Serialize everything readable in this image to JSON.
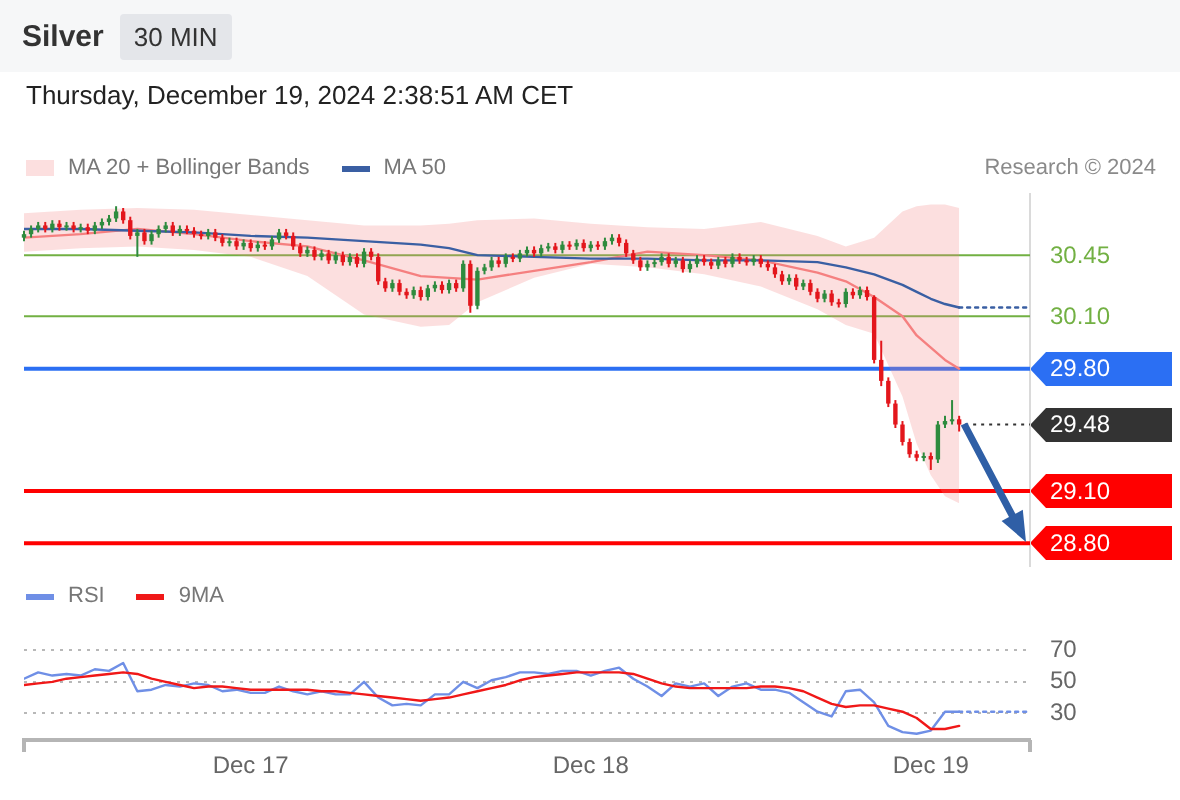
{
  "chart_data": [
    {
      "type": "candlestick",
      "title": "Silver",
      "subtitle": "Thursday, December 19, 2024 2:38:51 AM CET",
      "annotations": [
        "30 MIN",
        "Research © 2024"
      ],
      "x": [
        "2024-12-16T08:00",
        "2024-12-16T08:30",
        "2024-12-16T09:00",
        "2024-12-16T09:30",
        "2024-12-16T10:00",
        "2024-12-16T10:30",
        "2024-12-16T11:00",
        "2024-12-16T11:30",
        "2024-12-16T12:00",
        "2024-12-16T12:30",
        "2024-12-16T13:00",
        "2024-12-16T13:30",
        "2024-12-16T14:00",
        "2024-12-16T14:30",
        "2024-12-16T15:00",
        "2024-12-16T15:30",
        "2024-12-16T16:00",
        "2024-12-16T16:30",
        "2024-12-16T17:00",
        "2024-12-16T17:30",
        "2024-12-16T18:00",
        "2024-12-16T18:30",
        "2024-12-16T19:00",
        "2024-12-16T19:30",
        "2024-12-16T20:00",
        "2024-12-16T20:30",
        "2024-12-16T21:00",
        "2024-12-16T21:30",
        "2024-12-16T22:00",
        "2024-12-16T22:30",
        "2024-12-16T23:00",
        "2024-12-16T23:30",
        "2024-12-17T00:00",
        "2024-12-17T00:30",
        "2024-12-17T01:00",
        "2024-12-17T01:30",
        "2024-12-17T02:00",
        "2024-12-17T02:30",
        "2024-12-17T03:00",
        "2024-12-17T03:30",
        "2024-12-17T04:00",
        "2024-12-17T04:30",
        "2024-12-17T05:00",
        "2024-12-17T05:30",
        "2024-12-17T06:00",
        "2024-12-17T06:30",
        "2024-12-17T07:00",
        "2024-12-17T07:30",
        "2024-12-17T08:00",
        "2024-12-17T08:30",
        "2024-12-17T09:00",
        "2024-12-17T09:30",
        "2024-12-17T10:00",
        "2024-12-17T10:30",
        "2024-12-17T11:00",
        "2024-12-17T11:30",
        "2024-12-17T12:00",
        "2024-12-17T12:30",
        "2024-12-17T13:00",
        "2024-12-17T13:30",
        "2024-12-17T14:00",
        "2024-12-17T14:30",
        "2024-12-17T15:00",
        "2024-12-17T15:30",
        "2024-12-17T16:00",
        "2024-12-17T16:30",
        "2024-12-17T17:00",
        "2024-12-17T17:30",
        "2024-12-17T18:00",
        "2024-12-17T18:30",
        "2024-12-17T19:00",
        "2024-12-17T19:30",
        "2024-12-17T20:00",
        "2024-12-17T20:30",
        "2024-12-17T21:00",
        "2024-12-17T21:30",
        "2024-12-17T22:00",
        "2024-12-17T22:30",
        "2024-12-17T23:00",
        "2024-12-17T23:30",
        "2024-12-18T00:00",
        "2024-12-18T00:30",
        "2024-12-18T01:00",
        "2024-12-18T01:30",
        "2024-12-18T02:00",
        "2024-12-18T02:30",
        "2024-12-18T03:00",
        "2024-12-18T03:30",
        "2024-12-18T04:00",
        "2024-12-18T04:30",
        "2024-12-18T05:00",
        "2024-12-18T05:30",
        "2024-12-18T06:00",
        "2024-12-18T06:30",
        "2024-12-18T07:00",
        "2024-12-18T07:30",
        "2024-12-18T08:00",
        "2024-12-18T08:30",
        "2024-12-18T09:00",
        "2024-12-18T09:30",
        "2024-12-18T10:00",
        "2024-12-18T10:30",
        "2024-12-18T11:00",
        "2024-12-18T11:30",
        "2024-12-18T12:00",
        "2024-12-18T12:30",
        "2024-12-18T13:00",
        "2024-12-18T13:30",
        "2024-12-18T14:00",
        "2024-12-18T14:30",
        "2024-12-18T15:00",
        "2024-12-18T15:30",
        "2024-12-18T16:00",
        "2024-12-18T16:30",
        "2024-12-18T17:00",
        "2024-12-18T17:30",
        "2024-12-18T18:00",
        "2024-12-18T18:30",
        "2024-12-18T19:00",
        "2024-12-18T19:30",
        "2024-12-18T20:00",
        "2024-12-18T20:30",
        "2024-12-18T21:00",
        "2024-12-18T21:30",
        "2024-12-18T22:00",
        "2024-12-18T22:30",
        "2024-12-18T23:00",
        "2024-12-18T23:30",
        "2024-12-19T00:00",
        "2024-12-19T00:30",
        "2024-12-19T01:00",
        "2024-12-19T01:30",
        "2024-12-19T02:00"
      ],
      "ohlc": [
        [
          30.55,
          30.59,
          30.53,
          30.57
        ],
        [
          30.57,
          30.62,
          30.55,
          30.6
        ],
        [
          30.6,
          30.64,
          30.58,
          30.62
        ],
        [
          30.62,
          30.64,
          30.58,
          30.6
        ],
        [
          30.6,
          30.65,
          30.58,
          30.63
        ],
        [
          30.63,
          30.65,
          30.59,
          30.61
        ],
        [
          30.61,
          30.64,
          30.59,
          30.62
        ],
        [
          30.62,
          30.64,
          30.58,
          30.6
        ],
        [
          30.6,
          30.63,
          30.58,
          30.61
        ],
        [
          30.61,
          30.63,
          30.57,
          30.59
        ],
        [
          30.59,
          30.64,
          30.57,
          30.62
        ],
        [
          30.62,
          30.66,
          30.6,
          30.64
        ],
        [
          30.64,
          30.68,
          30.62,
          30.66
        ],
        [
          30.66,
          30.73,
          30.64,
          30.7
        ],
        [
          30.7,
          30.72,
          30.63,
          30.65
        ],
        [
          30.65,
          30.67,
          30.54,
          30.56
        ],
        [
          30.56,
          30.6,
          30.44,
          30.58
        ],
        [
          30.58,
          30.6,
          30.51,
          30.53
        ],
        [
          30.53,
          30.59,
          30.51,
          30.57
        ],
        [
          30.57,
          30.62,
          30.55,
          30.6
        ],
        [
          30.6,
          30.64,
          30.58,
          30.62
        ],
        [
          30.62,
          30.64,
          30.56,
          30.58
        ],
        [
          30.58,
          30.62,
          30.56,
          30.6
        ],
        [
          30.6,
          30.62,
          30.57,
          30.59
        ],
        [
          30.59,
          30.61,
          30.55,
          30.57
        ],
        [
          30.57,
          30.59,
          30.54,
          30.56
        ],
        [
          30.56,
          30.6,
          30.54,
          30.58
        ],
        [
          30.58,
          30.6,
          30.53,
          30.55
        ],
        [
          30.55,
          30.57,
          30.5,
          30.52
        ],
        [
          30.52,
          30.55,
          30.5,
          30.53
        ],
        [
          30.53,
          30.55,
          30.48,
          30.5
        ],
        [
          30.5,
          30.54,
          30.48,
          30.52
        ],
        [
          30.52,
          30.54,
          30.47,
          30.49
        ],
        [
          30.49,
          30.53,
          30.47,
          30.51
        ],
        [
          30.51,
          30.53,
          30.48,
          30.5
        ],
        [
          30.5,
          30.56,
          30.48,
          30.54
        ],
        [
          30.54,
          30.6,
          30.52,
          30.58
        ],
        [
          30.58,
          30.6,
          30.54,
          30.56
        ],
        [
          30.56,
          30.58,
          30.48,
          30.5
        ],
        [
          30.5,
          30.52,
          30.44,
          30.46
        ],
        [
          30.46,
          30.5,
          30.44,
          30.48
        ],
        [
          30.48,
          30.5,
          30.42,
          30.44
        ],
        [
          30.44,
          30.48,
          30.42,
          30.46
        ],
        [
          30.46,
          30.48,
          30.4,
          30.42
        ],
        [
          30.42,
          30.47,
          30.4,
          30.45
        ],
        [
          30.45,
          30.47,
          30.39,
          30.41
        ],
        [
          30.41,
          30.46,
          30.39,
          30.44
        ],
        [
          30.44,
          30.46,
          30.38,
          30.4
        ],
        [
          30.4,
          30.49,
          30.38,
          30.47
        ],
        [
          30.47,
          30.49,
          30.42,
          30.44
        ],
        [
          30.44,
          30.46,
          30.28,
          30.3
        ],
        [
          30.3,
          30.32,
          30.24,
          30.26
        ],
        [
          30.26,
          30.31,
          30.24,
          30.29
        ],
        [
          30.29,
          30.31,
          30.22,
          30.24
        ],
        [
          30.24,
          30.26,
          30.2,
          30.22
        ],
        [
          30.22,
          30.27,
          30.2,
          30.25
        ],
        [
          30.25,
          30.27,
          30.19,
          30.21
        ],
        [
          30.21,
          30.28,
          30.19,
          30.26
        ],
        [
          30.26,
          30.3,
          30.24,
          30.28
        ],
        [
          30.28,
          30.3,
          30.23,
          30.25
        ],
        [
          30.25,
          30.31,
          30.23,
          30.29
        ],
        [
          30.29,
          30.31,
          30.24,
          30.26
        ],
        [
          30.26,
          30.42,
          30.24,
          30.4
        ],
        [
          30.4,
          30.42,
          30.12,
          30.16
        ],
        [
          30.16,
          30.38,
          30.14,
          30.36
        ],
        [
          30.36,
          30.4,
          30.34,
          30.38
        ],
        [
          30.38,
          30.44,
          30.36,
          30.42
        ],
        [
          30.42,
          30.44,
          30.38,
          30.4
        ],
        [
          30.4,
          30.46,
          30.38,
          30.44
        ],
        [
          30.44,
          30.46,
          30.41,
          30.43
        ],
        [
          30.43,
          30.48,
          30.41,
          30.46
        ],
        [
          30.46,
          30.5,
          30.44,
          30.48
        ],
        [
          30.48,
          30.5,
          30.44,
          30.46
        ],
        [
          30.46,
          30.51,
          30.44,
          30.49
        ],
        [
          30.49,
          30.52,
          30.47,
          30.5
        ],
        [
          30.5,
          30.52,
          30.46,
          30.48
        ],
        [
          30.48,
          30.53,
          30.46,
          30.51
        ],
        [
          30.51,
          30.53,
          30.48,
          30.5
        ],
        [
          30.5,
          30.54,
          30.48,
          30.52
        ],
        [
          30.52,
          30.54,
          30.47,
          30.49
        ],
        [
          30.49,
          30.53,
          30.47,
          30.51
        ],
        [
          30.51,
          30.53,
          30.48,
          30.5
        ],
        [
          30.5,
          30.55,
          30.48,
          30.53
        ],
        [
          30.53,
          30.57,
          30.51,
          30.55
        ],
        [
          30.55,
          30.57,
          30.5,
          30.52
        ],
        [
          30.52,
          30.54,
          30.44,
          30.46
        ],
        [
          30.46,
          30.48,
          30.4,
          30.42
        ],
        [
          30.42,
          30.44,
          30.36,
          30.38
        ],
        [
          30.38,
          30.42,
          30.36,
          30.4
        ],
        [
          30.4,
          30.43,
          30.38,
          30.41
        ],
        [
          30.41,
          30.46,
          30.39,
          30.44
        ],
        [
          30.44,
          30.46,
          30.38,
          30.4
        ],
        [
          30.4,
          30.44,
          30.38,
          30.42
        ],
        [
          30.42,
          30.44,
          30.35,
          30.37
        ],
        [
          30.37,
          30.42,
          30.35,
          30.4
        ],
        [
          30.4,
          30.45,
          30.38,
          30.43
        ],
        [
          30.43,
          30.45,
          30.39,
          30.41
        ],
        [
          30.41,
          30.43,
          30.37,
          30.39
        ],
        [
          30.39,
          30.44,
          30.37,
          30.42
        ],
        [
          30.42,
          30.44,
          30.38,
          30.4
        ],
        [
          30.4,
          30.46,
          30.38,
          30.44
        ],
        [
          30.44,
          30.46,
          30.4,
          30.42
        ],
        [
          30.42,
          30.44,
          30.39,
          30.41
        ],
        [
          30.41,
          30.45,
          30.39,
          30.43
        ],
        [
          30.43,
          30.45,
          30.38,
          30.4
        ],
        [
          30.4,
          30.42,
          30.36,
          30.38
        ],
        [
          30.38,
          30.4,
          30.32,
          30.34
        ],
        [
          30.34,
          30.36,
          30.28,
          30.3
        ],
        [
          30.3,
          30.34,
          30.28,
          30.32
        ],
        [
          30.32,
          30.34,
          30.25,
          30.27
        ],
        [
          30.27,
          30.31,
          30.25,
          30.29
        ],
        [
          30.29,
          30.31,
          30.22,
          30.24
        ],
        [
          30.24,
          30.26,
          30.18,
          30.2
        ],
        [
          30.2,
          30.25,
          30.18,
          30.23
        ],
        [
          30.23,
          30.25,
          30.16,
          30.18
        ],
        [
          30.18,
          30.2,
          30.15,
          30.17
        ],
        [
          30.17,
          30.26,
          30.15,
          30.24
        ],
        [
          30.24,
          30.26,
          30.2,
          30.22
        ],
        [
          30.22,
          30.27,
          30.2,
          30.25
        ],
        [
          30.25,
          30.27,
          30.19,
          30.21
        ],
        [
          30.21,
          30.22,
          29.83,
          29.85
        ],
        [
          29.85,
          29.96,
          29.7,
          29.73
        ],
        [
          29.73,
          29.75,
          29.58,
          29.6
        ],
        [
          29.6,
          29.62,
          29.46,
          29.48
        ],
        [
          29.48,
          29.5,
          29.36,
          29.38
        ],
        [
          29.38,
          29.4,
          29.29,
          29.31
        ],
        [
          29.31,
          29.33,
          29.27,
          29.29
        ],
        [
          29.29,
          29.32,
          29.27,
          29.3
        ],
        [
          29.3,
          29.32,
          29.22,
          29.28
        ],
        [
          29.28,
          29.5,
          29.26,
          29.48
        ],
        [
          29.48,
          29.53,
          29.46,
          29.5
        ],
        [
          29.5,
          29.62,
          29.48,
          29.51
        ],
        [
          29.51,
          29.53,
          29.44,
          29.48
        ]
      ],
      "colors": [
        "#2e8b3e",
        "#2e8b3e",
        "#2e8b3e",
        "#e3161c",
        "#2e8b3e",
        "#e3161c",
        "#2e8b3e",
        "#e3161c",
        "#2e8b3e",
        "#e3161c",
        "#2e8b3e",
        "#2e8b3e",
        "#2e8b3e",
        "#2e8b3e",
        "#e3161c",
        "#e3161c",
        "#2e8b3e",
        "#e3161c",
        "#2e8b3e",
        "#2e8b3e",
        "#2e8b3e",
        "#e3161c",
        "#2e8b3e",
        "#e3161c",
        "#e3161c",
        "#e3161c",
        "#2e8b3e",
        "#e3161c",
        "#e3161c",
        "#2e8b3e",
        "#e3161c",
        "#2e8b3e",
        "#e3161c",
        "#2e8b3e",
        "#e3161c",
        "#2e8b3e",
        "#2e8b3e",
        "#e3161c",
        "#e3161c",
        "#e3161c",
        "#2e8b3e",
        "#e3161c",
        "#2e8b3e",
        "#e3161c",
        "#2e8b3e",
        "#e3161c",
        "#2e8b3e",
        "#e3161c",
        "#2e8b3e",
        "#e3161c",
        "#e3161c",
        "#e3161c",
        "#2e8b3e",
        "#e3161c",
        "#e3161c",
        "#2e8b3e",
        "#e3161c",
        "#2e8b3e",
        "#2e8b3e",
        "#e3161c",
        "#2e8b3e",
        "#e3161c",
        "#2e8b3e",
        "#e3161c",
        "#2e8b3e",
        "#2e8b3e",
        "#2e8b3e",
        "#e3161c",
        "#2e8b3e",
        "#e3161c",
        "#2e8b3e",
        "#2e8b3e",
        "#e3161c",
        "#2e8b3e",
        "#2e8b3e",
        "#e3161c",
        "#2e8b3e",
        "#e3161c",
        "#2e8b3e",
        "#e3161c",
        "#2e8b3e",
        "#e3161c",
        "#2e8b3e",
        "#2e8b3e",
        "#e3161c",
        "#e3161c",
        "#e3161c",
        "#e3161c",
        "#2e8b3e",
        "#2e8b3e",
        "#2e8b3e",
        "#e3161c",
        "#2e8b3e",
        "#e3161c",
        "#2e8b3e",
        "#2e8b3e",
        "#e3161c",
        "#e3161c",
        "#2e8b3e",
        "#e3161c",
        "#2e8b3e",
        "#e3161c",
        "#e3161c",
        "#2e8b3e",
        "#e3161c",
        "#e3161c",
        "#e3161c",
        "#e3161c",
        "#2e8b3e",
        "#e3161c",
        "#2e8b3e",
        "#e3161c",
        "#e3161c",
        "#2e8b3e",
        "#e3161c",
        "#e3161c",
        "#2e8b3e",
        "#e3161c",
        "#2e8b3e",
        "#e3161c",
        "#e3161c",
        "#e3161c",
        "#e3161c",
        "#e3161c",
        "#e3161c",
        "#e3161c",
        "#e3161c",
        "#2e8b3e",
        "#e3161c",
        "#2e8b3e",
        "#2e8b3e",
        "#2e8b3e",
        "#e3161c"
      ],
      "series": [
        {
          "type": "line",
          "name": "MA 20 + Bollinger Bands",
          "color": "#f58080",
          "x": [
            "2024-12-16T08:00",
            "2024-12-16T12:00",
            "2024-12-16T16:00",
            "2024-12-16T20:00",
            "2024-12-17T00:00",
            "2024-12-17T04:00",
            "2024-12-17T08:00",
            "2024-12-17T12:00",
            "2024-12-17T14:00",
            "2024-12-17T16:00",
            "2024-12-17T20:00",
            "2024-12-18T00:00",
            "2024-12-18T04:00",
            "2024-12-18T08:00",
            "2024-12-18T12:00",
            "2024-12-18T16:00",
            "2024-12-18T18:00",
            "2024-12-18T20:00",
            "2024-12-18T22:00",
            "2024-12-18T23:00",
            "2024-12-19T00:00",
            "2024-12-19T01:00",
            "2024-12-19T02:00"
          ],
          "values": [
            30.55,
            30.57,
            30.6,
            30.57,
            30.53,
            30.5,
            30.42,
            30.33,
            30.32,
            30.31,
            30.36,
            30.41,
            30.47,
            30.45,
            30.42,
            30.35,
            30.3,
            30.21,
            30.1,
            29.99,
            29.92,
            29.85,
            29.8
          ],
          "upper": [
            30.69,
            30.71,
            30.72,
            30.71,
            30.68,
            30.65,
            30.62,
            30.62,
            30.63,
            30.65,
            30.66,
            30.63,
            30.61,
            30.6,
            30.64,
            30.56,
            30.5,
            30.55,
            30.7,
            30.73,
            30.74,
            30.74,
            30.72
          ],
          "lower": [
            30.47,
            30.49,
            30.5,
            30.48,
            30.44,
            30.33,
            30.11,
            30.04,
            30.05,
            30.18,
            30.32,
            30.4,
            30.38,
            30.34,
            30.27,
            30.14,
            30.05,
            30.0,
            29.64,
            29.37,
            29.19,
            29.07,
            29.03
          ]
        },
        {
          "type": "line",
          "name": "MA 50",
          "color": "#3a5fa3",
          "x": [
            "2024-12-16T08:00",
            "2024-12-16T12:00",
            "2024-12-16T16:00",
            "2024-12-16T20:00",
            "2024-12-17T00:00",
            "2024-12-17T04:00",
            "2024-12-17T08:00",
            "2024-12-17T12:00",
            "2024-12-17T14:00",
            "2024-12-17T16:00",
            "2024-12-17T20:00",
            "2024-12-18T00:00",
            "2024-12-18T04:00",
            "2024-12-18T08:00",
            "2024-12-18T12:00",
            "2024-12-18T16:00",
            "2024-12-18T18:00",
            "2024-12-18T20:00",
            "2024-12-18T22:00",
            "2024-12-18T23:00",
            "2024-12-19T00:00",
            "2024-12-19T01:00",
            "2024-12-19T02:00"
          ],
          "values": [
            30.6,
            30.6,
            30.59,
            30.58,
            30.56,
            30.55,
            30.53,
            30.51,
            30.49,
            30.45,
            30.44,
            30.43,
            30.43,
            30.42,
            30.42,
            30.41,
            30.38,
            30.34,
            30.28,
            30.24,
            30.2,
            30.17,
            30.15
          ]
        },
        {
          "type": "line",
          "color": "#3a5fa3",
          "line_style": "dotted",
          "x": [
            "2024-12-19T02:00",
            "2024-12-19T07:00"
          ],
          "values": [
            30.15,
            30.15
          ]
        }
      ],
      "xlim": [
        "2024-12-16T08:00",
        "2024-12-19T07:00"
      ],
      "ylim": [
        28.67,
        30.8
      ],
      "ref_lines": [
        {
          "axis": "y",
          "value": 30.45,
          "label": "30.45",
          "color": "#72b043"
        },
        {
          "axis": "y",
          "value": 30.1,
          "label": "30.10",
          "color": "#72b043"
        },
        {
          "axis": "y",
          "value": 29.8,
          "label": "29.80",
          "color": "#2b6ff3"
        },
        {
          "axis": "y",
          "value": 29.48,
          "label": "29.48",
          "color": "#333333",
          "line_style": "dotted"
        },
        {
          "axis": "y",
          "value": 29.1,
          "label": "29.10",
          "color": "#ff0000"
        },
        {
          "axis": "y",
          "value": 28.8,
          "label": "28.80",
          "color": "#ff0000"
        }
      ],
      "legend": "top left",
      "marker": "none",
      "tick_labels": false
    },
    {
      "type": "line",
      "x": [
        "2024-12-16T08:00",
        "2024-12-16T09:00",
        "2024-12-16T10:00",
        "2024-12-16T11:00",
        "2024-12-16T12:00",
        "2024-12-16T13:00",
        "2024-12-16T14:00",
        "2024-12-16T15:00",
        "2024-12-16T16:00",
        "2024-12-16T17:00",
        "2024-12-16T18:00",
        "2024-12-16T19:00",
        "2024-12-16T20:00",
        "2024-12-16T21:00",
        "2024-12-16T22:00",
        "2024-12-16T23:00",
        "2024-12-17T00:00",
        "2024-12-17T01:00",
        "2024-12-17T02:00",
        "2024-12-17T03:00",
        "2024-12-17T04:00",
        "2024-12-17T05:00",
        "2024-12-17T06:00",
        "2024-12-17T07:00",
        "2024-12-17T08:00",
        "2024-12-17T09:00",
        "2024-12-17T10:00",
        "2024-12-17T11:00",
        "2024-12-17T12:00",
        "2024-12-17T13:00",
        "2024-12-17T14:00",
        "2024-12-17T15:00",
        "2024-12-17T16:00",
        "2024-12-17T17:00",
        "2024-12-17T18:00",
        "2024-12-17T19:00",
        "2024-12-17T20:00",
        "2024-12-17T21:00",
        "2024-12-17T22:00",
        "2024-12-17T23:00",
        "2024-12-18T00:00",
        "2024-12-18T01:00",
        "2024-12-18T02:00",
        "2024-12-18T03:00",
        "2024-12-18T04:00",
        "2024-12-18T05:00",
        "2024-12-18T06:00",
        "2024-12-18T07:00",
        "2024-12-18T08:00",
        "2024-12-18T09:00",
        "2024-12-18T10:00",
        "2024-12-18T11:00",
        "2024-12-18T12:00",
        "2024-12-18T13:00",
        "2024-12-18T14:00",
        "2024-12-18T15:00",
        "2024-12-18T16:00",
        "2024-12-18T17:00",
        "2024-12-18T18:00",
        "2024-12-18T19:00",
        "2024-12-18T20:00",
        "2024-12-18T21:00",
        "2024-12-18T22:00",
        "2024-12-18T23:00",
        "2024-12-19T00:00",
        "2024-12-19T01:00",
        "2024-12-19T02:00"
      ],
      "series": [
        {
          "name": "RSI",
          "color": "#6f8fe6",
          "values": [
            52,
            56,
            54,
            55,
            54,
            58,
            57,
            62,
            44,
            45,
            48,
            47,
            49,
            48,
            44,
            45,
            43,
            43,
            47,
            44,
            42,
            44,
            42,
            42,
            50,
            40,
            35,
            36,
            35,
            42,
            42,
            50,
            46,
            51,
            53,
            56,
            56,
            55,
            57,
            57,
            54,
            57,
            59,
            52,
            47,
            41,
            49,
            47,
            49,
            41,
            47,
            49,
            45,
            45,
            43,
            37,
            31,
            28,
            44,
            45,
            37,
            22,
            18,
            17,
            19,
            31,
            31
          ]
        },
        {
          "name": "9MA",
          "color": "#f01818",
          "values": [
            48,
            49,
            50,
            52,
            53,
            54,
            55,
            56,
            55,
            52,
            50,
            48,
            46,
            47,
            47,
            46,
            45,
            45,
            45,
            45,
            45,
            44,
            44,
            43,
            42,
            41,
            40,
            39,
            38,
            39,
            40,
            42,
            44,
            46,
            48,
            51,
            53,
            54,
            55,
            56,
            56,
            56,
            56,
            55,
            52,
            49,
            47,
            46,
            46,
            46,
            46,
            46,
            47,
            47,
            46,
            44,
            40,
            36,
            34,
            35,
            35,
            33,
            31,
            27,
            20,
            20,
            22
          ]
        },
        {
          "color": "#6f8fe6",
          "line_style": "dotted",
          "x": [
            "2024-12-19T02:00",
            "2024-12-19T07:00"
          ],
          "values": [
            31,
            31
          ]
        }
      ],
      "xlim": [
        "2024-12-16T08:00",
        "2024-12-19T07:00"
      ],
      "xticks": [
        {
          "value": "2024-12-17",
          "label": "Dec 17"
        },
        {
          "value": "2024-12-18",
          "label": "Dec 18"
        },
        {
          "value": "2024-12-19",
          "label": "Dec 19"
        }
      ],
      "ylim": [
        13,
        70
      ],
      "yticks": [
        30,
        50,
        70
      ],
      "grid": "y",
      "legend": "top left",
      "marker": "none"
    }
  ]
}
